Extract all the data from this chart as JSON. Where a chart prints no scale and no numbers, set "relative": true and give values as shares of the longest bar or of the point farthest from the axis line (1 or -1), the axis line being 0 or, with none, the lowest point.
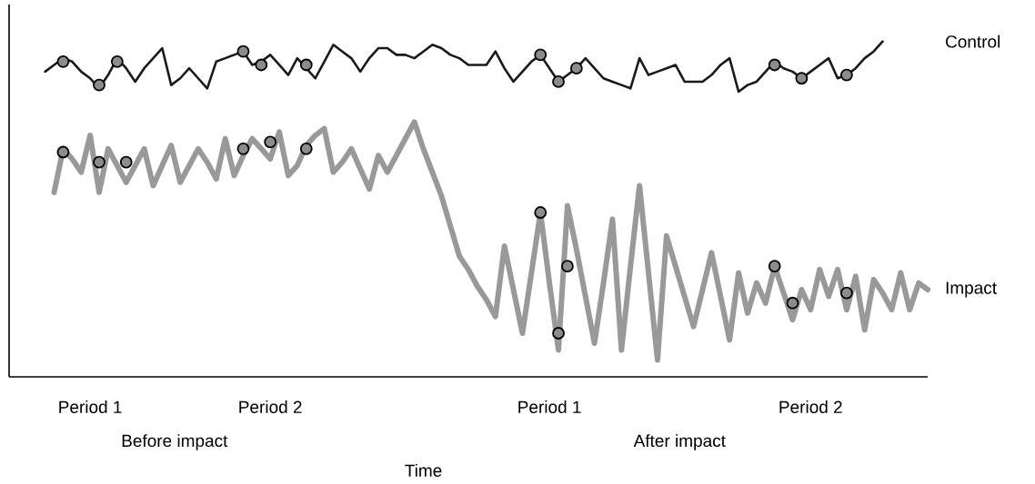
{
  "chart_data": {
    "type": "line",
    "relative": true,
    "xlabel": "Time",
    "grid": false,
    "categories": [
      null,
      null,
      null,
      null,
      null,
      null,
      null,
      null,
      null,
      "Period 1",
      null,
      null,
      null,
      null,
      null,
      null,
      null,
      null,
      null,
      null,
      null,
      null,
      null,
      null,
      null,
      null,
      null,
      null,
      null,
      "Period 2",
      null,
      null,
      null,
      null,
      null,
      null,
      null,
      null,
      null,
      null,
      null,
      null,
      null,
      null,
      null,
      null,
      null,
      null,
      null,
      null,
      null,
      null,
      null,
      null,
      null,
      null,
      null,
      null,
      null,
      null,
      "Period 1",
      null,
      null,
      null,
      null,
      null,
      null,
      null,
      null,
      null,
      null,
      null,
      null,
      null,
      null,
      null,
      null,
      null,
      null,
      null,
      null,
      null,
      null,
      null,
      null,
      null,
      null,
      null,
      null,
      "Period 2",
      null,
      null,
      null,
      null,
      null,
      null,
      null,
      null,
      null,
      null,
      null,
      null,
      null
    ],
    "series": [
      {
        "name": "Control",
        "color": "#1a1a1a",
        "marker": "none",
        "values": [
          null,
          null,
          null,
          null,
          0.91,
          0.93,
          0.95,
          0.94,
          0.91,
          0.89,
          0.86,
          0.9,
          0.95,
          0.92,
          0.88,
          0.92,
          0.95,
          0.98,
          0.87,
          0.89,
          0.92,
          0.89,
          0.86,
          0.94,
          0.95,
          0.96,
          0.97,
          0.93,
          0.94,
          0.96,
          0.93,
          0.9,
          0.95,
          0.92,
          0.89,
          0.94,
          0.99,
          0.97,
          0.95,
          0.91,
          0.95,
          0.98,
          0.98,
          0.96,
          0.96,
          0.95,
          0.97,
          0.99,
          0.98,
          0.96,
          0.95,
          0.93,
          0.93,
          0.93,
          0.97,
          0.92,
          0.88,
          0.91,
          0.94,
          0.96,
          0.92,
          0.88,
          0.9,
          0.92,
          0.95,
          0.92,
          0.89,
          0.88,
          0.87,
          0.86,
          0.95,
          0.9,
          0.91,
          0.92,
          0.93,
          0.88,
          0.88,
          0.88,
          0.9,
          0.93,
          0.95,
          0.85,
          0.87,
          0.88,
          0.91,
          0.94,
          0.92,
          0.91,
          0.89,
          0.91,
          0.93,
          0.95,
          0.89,
          0.9,
          0.92,
          0.95,
          0.97,
          1,
          null,
          null,
          null,
          null,
          null
        ]
      },
      {
        "name": "Impact",
        "color": "#999999",
        "marker": "none",
        "values": [
          null,
          null,
          null,
          null,
          null,
          0.55,
          0.68,
          0.65,
          0.61,
          0.72,
          0.55,
          0.68,
          0.63,
          0.58,
          0.63,
          0.68,
          0.57,
          0.63,
          0.69,
          0.58,
          0.63,
          0.68,
          0.64,
          0.59,
          0.71,
          0.6,
          0.66,
          0.71,
          0.68,
          0.65,
          0.73,
          0.6,
          0.63,
          0.69,
          0.72,
          0.74,
          0.61,
          0.64,
          0.68,
          0.62,
          0.56,
          0.66,
          0.61,
          0.66,
          0.71,
          0.76,
          0.68,
          0.61,
          0.54,
          0.45,
          0.36,
          0.32,
          0.27,
          0.23,
          0.18,
          0.39,
          0.26,
          0.13,
          0.31,
          0.49,
          0.28,
          0.08,
          0.51,
          0.38,
          0.24,
          0.1,
          0.28,
          0.47,
          0.08,
          0.33,
          0.57,
          0.31,
          0.05,
          0.42,
          0.33,
          0.24,
          0.15,
          0.26,
          0.37,
          0.24,
          0.11,
          0.31,
          0.19,
          0.28,
          0.22,
          0.33,
          0.25,
          0.17,
          0.26,
          0.2,
          0.32,
          0.24,
          0.32,
          0.2,
          0.3,
          0.14,
          0.29,
          0.25,
          0.2,
          0.31,
          0.2,
          0.28,
          0.26
        ]
      },
      {
        "type": "scatter",
        "color": "#8c8c8c",
        "marker": "circle",
        "values": [
          null,
          null,
          null,
          null,
          null,
          null,
          0.94,
          null,
          null,
          null,
          0.87,
          null,
          0.94,
          null,
          null,
          null,
          null,
          null,
          null,
          null,
          null,
          null,
          null,
          null,
          null,
          null,
          0.97,
          null,
          0.93,
          null,
          null,
          null,
          null,
          0.93,
          null,
          null,
          null,
          null,
          null,
          null,
          null,
          null,
          null,
          null,
          null,
          null,
          null,
          null,
          null,
          null,
          null,
          null,
          null,
          null,
          null,
          null,
          null,
          null,
          null,
          0.96,
          null,
          0.88,
          null,
          0.92,
          null,
          null,
          null,
          null,
          null,
          null,
          null,
          null,
          null,
          null,
          null,
          null,
          null,
          null,
          null,
          null,
          null,
          null,
          null,
          null,
          null,
          0.93,
          null,
          null,
          0.89,
          null,
          null,
          null,
          null,
          0.9,
          null,
          null,
          null,
          null,
          null,
          null,
          null,
          null,
          null
        ]
      },
      {
        "type": "scatter",
        "color": "#8c8c8c",
        "marker": "circle",
        "values": [
          null,
          null,
          null,
          null,
          null,
          null,
          0.67,
          null,
          null,
          null,
          0.64,
          null,
          null,
          0.64,
          null,
          null,
          null,
          null,
          null,
          null,
          null,
          null,
          null,
          null,
          null,
          null,
          0.68,
          null,
          null,
          0.7,
          null,
          null,
          null,
          0.68,
          null,
          null,
          null,
          null,
          null,
          null,
          null,
          null,
          null,
          null,
          null,
          null,
          null,
          null,
          null,
          null,
          null,
          null,
          null,
          null,
          null,
          null,
          null,
          null,
          null,
          0.49,
          null,
          0.13,
          0.33,
          null,
          null,
          null,
          null,
          null,
          null,
          null,
          null,
          null,
          null,
          null,
          null,
          null,
          null,
          null,
          null,
          null,
          null,
          null,
          null,
          null,
          null,
          0.33,
          null,
          0.22,
          null,
          null,
          null,
          null,
          null,
          0.25,
          null,
          null,
          null,
          null,
          null,
          null,
          null,
          null,
          null
        ]
      }
    ],
    "annotations": [
      "Before impact",
      "After impact"
    ]
  }
}
